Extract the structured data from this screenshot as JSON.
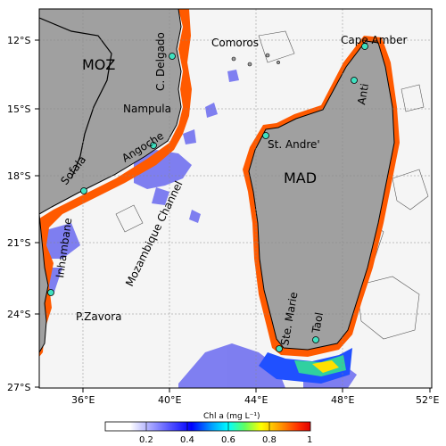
{
  "map": {
    "lon_ticks": [
      "36°E",
      "40°E",
      "44°E",
      "48°E",
      "52°E"
    ],
    "lat_ticks": [
      "12°S",
      "15°S",
      "18°S",
      "21°S",
      "24°S",
      "27°S"
    ],
    "regions": {
      "moz": "MOZ",
      "mad": "MAD",
      "comoros": "Comoros",
      "channel": "Mozambique Channel"
    },
    "places": {
      "c_delgado": "C. Delgado",
      "nampula": "Nampula",
      "angoche": "Angoche",
      "sofala": "Sofala",
      "inhambane": "Inhambane",
      "p_zavora": "P.Zavora",
      "cape_amber": "Cape Amber",
      "anti": "Anti",
      "st_andre": "St. Andre'",
      "ste_marie": "Ste. Marie",
      "taol": "Taol"
    },
    "colors": {
      "land": "#a0a0a0",
      "ocean": "#f5f5f5",
      "station": "#40e0c0",
      "high_chl": "#ff5a00"
    }
  },
  "colorbar": {
    "title": "Chl a (mg L⁻¹)",
    "ticks": [
      "0.2",
      "0.4",
      "0.6",
      "0.8",
      "1"
    ]
  }
}
